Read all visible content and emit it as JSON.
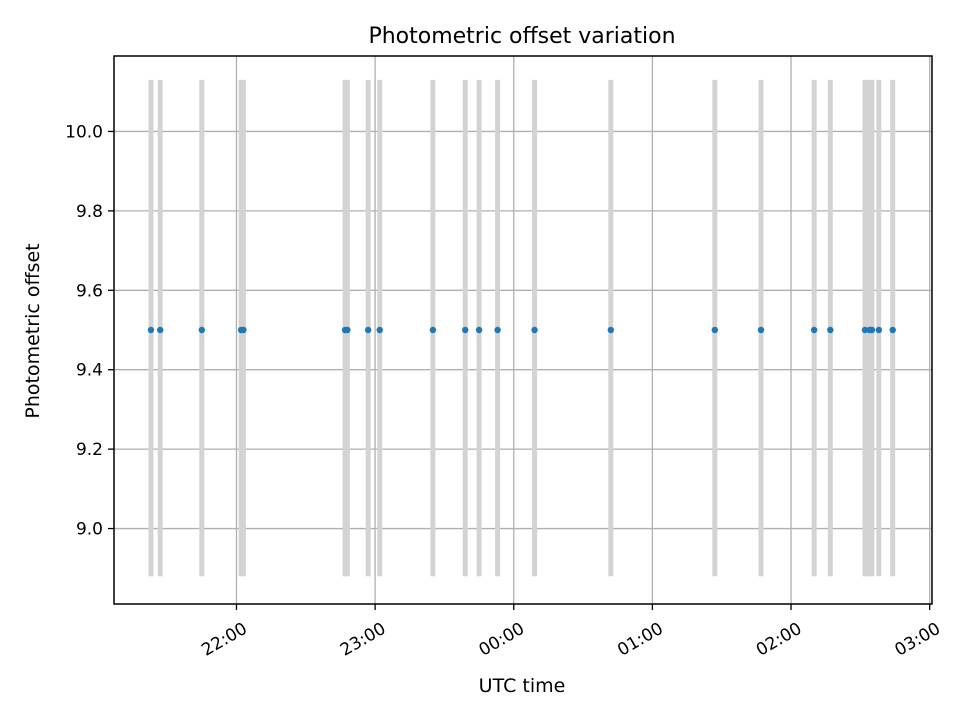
{
  "chart_data": {
    "type": "scatter",
    "title": "Photometric offset variation",
    "xlabel": "UTC time",
    "ylabel": "Photometric offset",
    "x_type": "time",
    "xlim": [
      "21:07",
      "03:01"
    ],
    "ylim": [
      8.81,
      10.19
    ],
    "x_ticks": [
      "22:00",
      "23:00",
      "00:00",
      "01:00",
      "02:00",
      "03:00"
    ],
    "y_ticks": [
      "9.0",
      "9.2",
      "9.4",
      "9.6",
      "9.8",
      "10.0"
    ],
    "grid": true,
    "error_bar_range": [
      8.88,
      10.13
    ],
    "colors": {
      "points": "#1f77b4",
      "error_bars": "#d3d3d3",
      "grid": "#b0b0b0"
    },
    "series": [
      {
        "x": [
          "21:23",
          "21:27",
          "21:45",
          "22:02",
          "22:03",
          "22:47",
          "22:48",
          "22:57",
          "23:02",
          "23:25",
          "23:39",
          "23:45",
          "23:53",
          "00:09",
          "00:42",
          "01:27",
          "01:47",
          "02:10",
          "02:17",
          "02:32",
          "02:34",
          "02:35",
          "02:38",
          "02:44"
        ],
        "y": [
          9.5,
          9.5,
          9.5,
          9.5,
          9.5,
          9.5,
          9.5,
          9.5,
          9.5,
          9.5,
          9.5,
          9.5,
          9.5,
          9.5,
          9.5,
          9.5,
          9.5,
          9.5,
          9.5,
          9.5,
          9.5,
          9.5,
          9.5,
          9.5
        ]
      }
    ]
  }
}
